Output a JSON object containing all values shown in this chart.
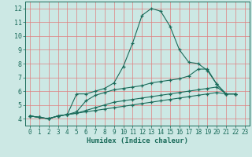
{
  "xlabel": "Humidex (Indice chaleur)",
  "background_color": "#cce8e4",
  "grid_color": "#e08080",
  "line_color": "#1a6b5a",
  "xlim": [
    -0.5,
    23.5
  ],
  "ylim": [
    3.5,
    12.5
  ],
  "xticks": [
    0,
    1,
    2,
    3,
    4,
    5,
    6,
    7,
    8,
    9,
    10,
    11,
    12,
    13,
    14,
    15,
    16,
    17,
    18,
    19,
    20,
    21,
    22,
    23
  ],
  "yticks": [
    4,
    5,
    6,
    7,
    8,
    9,
    10,
    11,
    12
  ],
  "series": [
    [
      4.2,
      4.1,
      4.0,
      4.2,
      4.3,
      5.8,
      5.8,
      6.0,
      6.2,
      6.6,
      7.8,
      9.5,
      11.5,
      12.0,
      11.8,
      10.7,
      9.0,
      8.1,
      8.0,
      7.5,
      6.5,
      5.8,
      5.8
    ],
    [
      4.2,
      4.1,
      4.0,
      4.2,
      4.3,
      4.5,
      5.3,
      5.7,
      5.9,
      6.1,
      6.2,
      6.3,
      6.4,
      6.6,
      6.7,
      6.8,
      6.9,
      7.1,
      7.6,
      7.6,
      6.5,
      5.8,
      5.8
    ],
    [
      4.2,
      4.1,
      4.0,
      4.2,
      4.3,
      4.4,
      4.6,
      4.8,
      5.0,
      5.2,
      5.3,
      5.4,
      5.5,
      5.6,
      5.7,
      5.8,
      5.9,
      6.0,
      6.1,
      6.2,
      6.3,
      5.8,
      5.8
    ],
    [
      4.2,
      4.1,
      4.0,
      4.2,
      4.3,
      4.4,
      4.5,
      4.6,
      4.7,
      4.8,
      4.9,
      5.0,
      5.1,
      5.2,
      5.3,
      5.4,
      5.5,
      5.6,
      5.7,
      5.8,
      5.9,
      5.8,
      5.8
    ]
  ]
}
